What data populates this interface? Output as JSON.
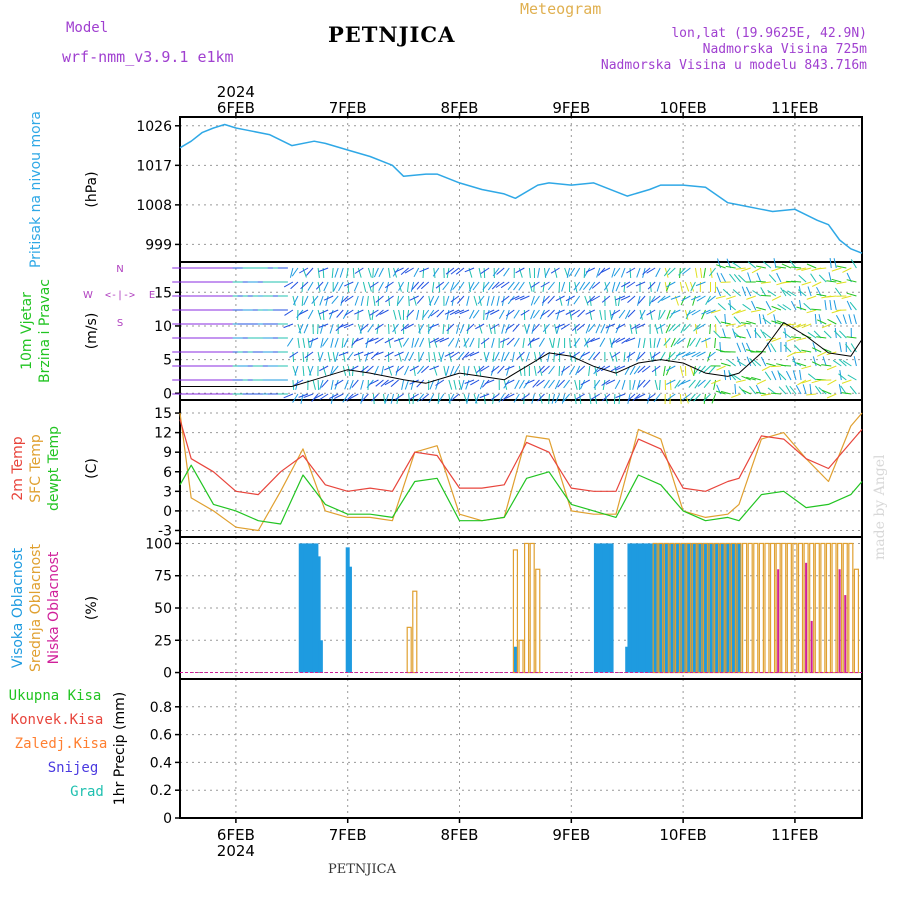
{
  "header": {
    "model_label": "Model",
    "model_name": "wrf-nmm_v3.9.1 e1km",
    "station": "PETNJICA",
    "chart_kind": "Meteogram",
    "coords": "lon,lat (19.9625E, 42.9N)",
    "elevation": "Nadmorska Visina 725m",
    "elevation_model": "Nadmorska Visina u modelu 843.716m"
  },
  "footer": {
    "station": "PETNJICA",
    "credit": "made by Angel"
  },
  "colors": {
    "pressure": "#2fa8e6",
    "temp2m": "#e8453c",
    "sfc_temp": "#e0a030",
    "dewpoint": "#22c422",
    "cloud_high": "#1e9be0",
    "cloud_mid": "#e0a030",
    "cloud_low": "#d0209a",
    "wind_speed": "#000000",
    "wind_dir": "#e8453c",
    "compass": "#b040c0",
    "precip_total": "#22c422",
    "precip_conv": "#e8453c",
    "precip_frozen": "#ff7f30",
    "precip_snow": "#4a3ae0",
    "precip_grad": "#20c0b0"
  },
  "chart_data": [
    {
      "type": "line",
      "name": "pressure",
      "axis_label": "(hPa)",
      "side_labels": [
        "Pritisak na nivou mora"
      ],
      "x_range": [
        0,
        6.1
      ],
      "ylim": [
        995,
        1028
      ],
      "yticks": [
        999,
        1008,
        1017,
        1026
      ],
      "series": [
        {
          "x": [
            0,
            0.1,
            0.2,
            0.3,
            0.4,
            0.5,
            0.6,
            0.8,
            1.0,
            1.2,
            1.3,
            1.5,
            1.7,
            1.9,
            2.0,
            2.2,
            2.3,
            2.5,
            2.7,
            2.9,
            3.0,
            3.2,
            3.3,
            3.5,
            3.7,
            3.9,
            4.0,
            4.2,
            4.3,
            4.5,
            4.7,
            4.9,
            5.0,
            5.2,
            5.3,
            5.5,
            5.7,
            5.8,
            5.9,
            6.0,
            6.1
          ],
          "values": [
            1021,
            1022.5,
            1024.5,
            1025.5,
            1026.3,
            1025.5,
            1025,
            1024,
            1021.5,
            1022.5,
            1022,
            1020.5,
            1019,
            1017,
            1014.5,
            1015,
            1015,
            1013,
            1011.5,
            1010.5,
            1009.5,
            1012.5,
            1013,
            1012.5,
            1013,
            1011,
            1010,
            1011.5,
            1012.5,
            1012.5,
            1012,
            1008.5,
            1008,
            1007,
            1006.5,
            1007,
            1004.5,
            1003.5,
            1000,
            998,
            997
          ]
        }
      ]
    },
    {
      "type": "line",
      "name": "wind",
      "axis_label": "(m/s)",
      "side_labels": [
        "10m Vjetar",
        "Brzina i Pravac"
      ],
      "compass": {
        "n": "N",
        "s": "S",
        "e": "E",
        "w": "W"
      },
      "x_range": [
        0,
        6.1
      ],
      "ylim": [
        -1,
        19.5
      ],
      "yticks": [
        0,
        5,
        10,
        15
      ],
      "series": [
        {
          "name": "speed",
          "x": [
            0,
            0.5,
            1.0,
            1.2,
            1.5,
            1.7,
            2.0,
            2.2,
            2.5,
            2.7,
            2.9,
            3.1,
            3.3,
            3.5,
            3.7,
            3.9,
            4.1,
            4.3,
            4.5,
            4.7,
            4.9,
            5.0,
            5.2,
            5.4,
            5.6,
            5.8,
            6.0,
            6.1
          ],
          "values": [
            1,
            1,
            1,
            2,
            3.5,
            3,
            2,
            1.5,
            3,
            2.5,
            2,
            4,
            6,
            5.5,
            4,
            3,
            4.5,
            5,
            4.5,
            3,
            2.5,
            3,
            6,
            10.5,
            8.5,
            6,
            5.5,
            8
          ]
        }
      ]
    },
    {
      "type": "line",
      "name": "temperature",
      "axis_label": "(C)",
      "side_labels": [
        "2m Temp",
        "SFC Temp",
        "dewpt Temp"
      ],
      "x_range": [
        0,
        6.1
      ],
      "ylim": [
        -4,
        17
      ],
      "yticks": [
        -3,
        0,
        3,
        6,
        9,
        12,
        15
      ],
      "series": [
        {
          "name": "2m Temp",
          "x": [
            0,
            0.1,
            0.3,
            0.5,
            0.7,
            0.9,
            1.1,
            1.3,
            1.5,
            1.7,
            1.9,
            2.1,
            2.3,
            2.5,
            2.7,
            2.9,
            3.1,
            3.3,
            3.5,
            3.7,
            3.9,
            4.1,
            4.3,
            4.5,
            4.7,
            4.9,
            5.0,
            5.2,
            5.4,
            5.6,
            5.8,
            6.0,
            6.1
          ],
          "values": [
            14,
            8,
            6,
            3,
            2.5,
            6,
            8.5,
            4,
            3,
            3.5,
            3,
            9,
            8.5,
            3.5,
            3.5,
            4,
            10.5,
            9,
            3.5,
            3,
            3,
            11,
            9.5,
            3.5,
            3,
            4.5,
            5,
            11.5,
            11,
            8,
            6.5,
            10.5,
            12.5
          ]
        },
        {
          "name": "SFC Temp",
          "x": [
            0,
            0.1,
            0.3,
            0.5,
            0.7,
            0.9,
            1.1,
            1.3,
            1.5,
            1.7,
            1.9,
            2.1,
            2.3,
            2.5,
            2.7,
            2.9,
            3.1,
            3.3,
            3.5,
            3.7,
            3.9,
            4.1,
            4.3,
            4.5,
            4.7,
            4.9,
            5.0,
            5.2,
            5.4,
            5.6,
            5.8,
            6.0,
            6.1
          ],
          "values": [
            15,
            2,
            0,
            -2.5,
            -3,
            3,
            9.5,
            0,
            -1,
            -1,
            -1.5,
            9,
            10,
            -0.5,
            -1.5,
            -1,
            11.5,
            11,
            0,
            -0.5,
            -0.5,
            12.5,
            11,
            0,
            -1,
            -0.5,
            1,
            11,
            12,
            8,
            4.5,
            13,
            15
          ]
        },
        {
          "name": "dewpt Temp",
          "x": [
            0,
            0.1,
            0.3,
            0.5,
            0.7,
            0.9,
            1.1,
            1.3,
            1.5,
            1.7,
            1.9,
            2.1,
            2.3,
            2.5,
            2.7,
            2.9,
            3.1,
            3.3,
            3.5,
            3.7,
            3.9,
            4.1,
            4.3,
            4.5,
            4.7,
            4.9,
            5.0,
            5.2,
            5.4,
            5.6,
            5.8,
            6.0,
            6.1
          ],
          "values": [
            4,
            7,
            1,
            0,
            -1.5,
            -2,
            5.5,
            1,
            -0.5,
            -0.5,
            -1,
            4.5,
            5,
            -1.5,
            -1.5,
            -1,
            5,
            6,
            1,
            0,
            -1,
            5.5,
            4,
            0,
            -1.5,
            -1,
            -1.5,
            2.5,
            3,
            0.5,
            1,
            2.5,
            4.5
          ]
        }
      ]
    },
    {
      "type": "bar",
      "name": "cloudiness",
      "axis_label": "(%)",
      "side_labels": [
        "Visoka Oblacnost",
        "Srednja Oblacnost",
        "Niska Oblacnost"
      ],
      "x_range": [
        0,
        6.1
      ],
      "ylim": [
        -5,
        105
      ],
      "yticks": [
        0,
        25,
        50,
        75,
        100
      ],
      "series": [
        {
          "name": "Visoka Oblacnost",
          "x": [
            1.08,
            1.1,
            1.12,
            1.14,
            1.16,
            1.18,
            1.2,
            1.22,
            1.24,
            1.26,
            1.28,
            1.5,
            1.52,
            3.0,
            3.72,
            3.74,
            3.76,
            3.78,
            3.8,
            3.82,
            3.84,
            3.86,
            4.0,
            4.02,
            4.04,
            4.06,
            4.08,
            4.1,
            4.12,
            4.14,
            4.16,
            4.18,
            4.2,
            4.22,
            4.24,
            4.26,
            4.28,
            4.3,
            4.32,
            4.34,
            4.36,
            4.38,
            4.4,
            4.42,
            4.44,
            4.46,
            4.48,
            4.5,
            4.52,
            4.54,
            4.56,
            4.58,
            4.6,
            4.62,
            4.64,
            4.66,
            4.68,
            4.7,
            4.72,
            4.74,
            4.76,
            4.78,
            4.8,
            4.82,
            4.84,
            4.86,
            4.88,
            4.9,
            4.92,
            4.94,
            4.96,
            4.98,
            5.0
          ],
          "values": [
            100,
            100,
            100,
            100,
            100,
            100,
            100,
            100,
            90,
            25,
            0,
            97,
            82,
            20,
            100,
            100,
            100,
            100,
            100,
            100,
            100,
            100,
            20,
            100,
            100,
            100,
            100,
            100,
            100,
            100,
            100,
            100,
            100,
            100,
            100,
            100,
            100,
            100,
            100,
            100,
            100,
            100,
            100,
            100,
            100,
            100,
            100,
            100,
            100,
            100,
            100,
            100,
            100,
            100,
            100,
            100,
            100,
            100,
            100,
            100,
            100,
            100,
            100,
            100,
            100,
            100,
            100,
            100,
            100,
            100,
            100,
            100,
            100
          ]
        },
        {
          "name": "Srednja Oblacnost",
          "x": [
            2.05,
            2.1,
            3.0,
            3.05,
            3.1,
            3.15,
            3.2,
            4.25,
            4.3,
            4.35,
            4.4,
            4.45,
            4.5,
            4.55,
            4.6,
            4.65,
            4.7,
            4.75,
            4.8,
            4.85,
            4.9,
            4.95,
            5.0,
            5.05,
            5.1,
            5.15,
            5.2,
            5.25,
            5.3,
            5.35,
            5.4,
            5.45,
            5.5,
            5.55,
            5.6,
            5.65,
            5.7,
            5.75,
            5.8,
            5.85,
            5.9,
            5.95,
            6.0,
            6.05
          ],
          "values": [
            35,
            63,
            95,
            25,
            100,
            100,
            80,
            100,
            100,
            100,
            100,
            100,
            100,
            100,
            100,
            100,
            100,
            100,
            100,
            100,
            100,
            100,
            100,
            100,
            100,
            100,
            100,
            100,
            100,
            100,
            100,
            100,
            100,
            100,
            100,
            100,
            100,
            100,
            100,
            100,
            100,
            100,
            100,
            80
          ]
        },
        {
          "name": "Niska Oblacnost",
          "x": [
            5.35,
            5.6,
            5.65,
            5.9,
            5.95
          ],
          "values": [
            80,
            85,
            40,
            80,
            60
          ]
        }
      ]
    },
    {
      "type": "line",
      "name": "precipitation",
      "axis_label": "1hr Precip (mm)",
      "x_range": [
        0,
        6.1
      ],
      "ylim": [
        0,
        1.0
      ],
      "yticks": [
        0,
        0.2,
        0.4,
        0.6,
        0.8
      ],
      "legend": [
        "Ukupna Kisa",
        "Konvek.Kisa",
        "Zaledj.Kisa",
        "Snijeg",
        "Grad"
      ],
      "series": []
    }
  ],
  "time_axis": {
    "year": "2024",
    "days": [
      {
        "label": "6FEB",
        "x": 0.5
      },
      {
        "label": "7FEB",
        "x": 1.5
      },
      {
        "label": "8FEB",
        "x": 2.5
      },
      {
        "label": "9FEB",
        "x": 3.5
      },
      {
        "label": "10FEB",
        "x": 4.5
      },
      {
        "label": "11FEB",
        "x": 5.5
      }
    ]
  }
}
